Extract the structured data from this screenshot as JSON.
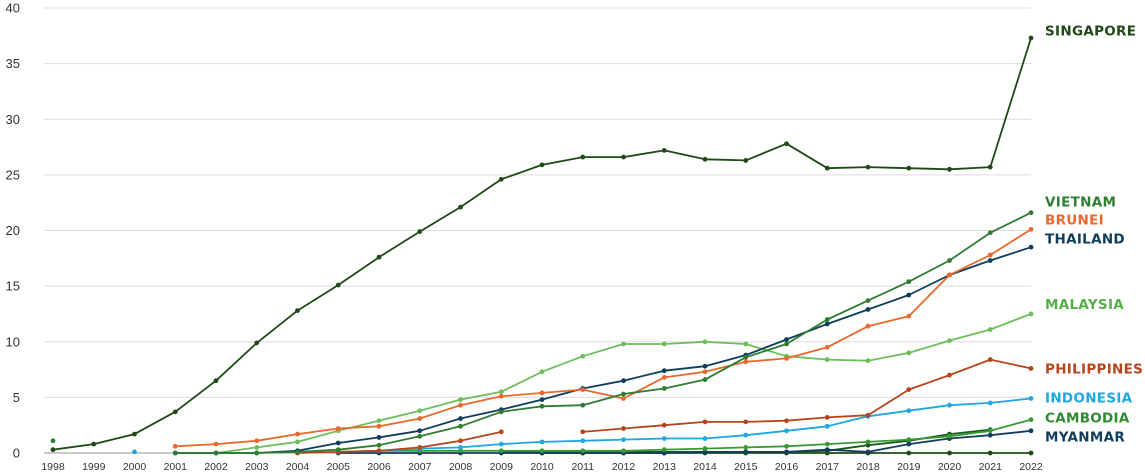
{
  "chart_data": {
    "type": "line",
    "title": "",
    "xlabel": "",
    "ylabel": "",
    "ylim": [
      0,
      40
    ],
    "yticks": [
      0,
      5,
      10,
      15,
      20,
      25,
      30,
      35,
      40
    ],
    "x": [
      1998,
      1999,
      2000,
      2001,
      2002,
      2003,
      2004,
      2005,
      2006,
      2007,
      2008,
      2009,
      2010,
      2011,
      2012,
      2013,
      2014,
      2015,
      2016,
      2017,
      2018,
      2019,
      2020,
      2021,
      2022
    ],
    "grid": "horizontal",
    "legend": "series labels at right end of lines",
    "series": [
      {
        "name": "SINGAPORE",
        "color": "#1f4a17",
        "values": [
          0.3,
          0.8,
          1.7,
          3.7,
          6.5,
          9.9,
          12.8,
          15.1,
          17.6,
          19.9,
          22.1,
          24.6,
          25.9,
          26.6,
          26.6,
          27.2,
          26.4,
          26.3,
          27.8,
          25.6,
          25.7,
          25.6,
          25.5,
          25.7,
          37.3
        ]
      },
      {
        "name": "VIETNAM",
        "color": "#2e7d32",
        "values": [
          1.1,
          null,
          null,
          0.0,
          0.0,
          0.0,
          0.1,
          0.3,
          0.7,
          1.5,
          2.4,
          3.7,
          4.2,
          4.3,
          5.3,
          5.8,
          6.6,
          8.6,
          9.8,
          12.0,
          13.7,
          15.4,
          17.3,
          19.8,
          21.6
        ]
      },
      {
        "name": "BRUNEI",
        "color": "#e8692e",
        "values": [
          null,
          null,
          null,
          0.6,
          0.8,
          1.1,
          1.7,
          2.2,
          2.4,
          3.1,
          4.3,
          5.1,
          5.4,
          5.7,
          4.9,
          6.8,
          7.3,
          8.2,
          8.5,
          9.5,
          11.4,
          12.3,
          16.0,
          17.8,
          20.1
        ]
      },
      {
        "name": "THAILAND",
        "color": "#0f3d5c",
        "values": [
          null,
          null,
          null,
          0.0,
          0.0,
          0.0,
          0.2,
          0.9,
          1.4,
          2.0,
          3.1,
          3.9,
          4.8,
          5.8,
          6.5,
          7.4,
          7.8,
          8.8,
          10.2,
          11.6,
          12.9,
          14.2,
          16.0,
          17.3,
          18.5
        ]
      },
      {
        "name": "MALAYSIA",
        "color": "#6cbf5a",
        "values": [
          null,
          null,
          null,
          null,
          0.0,
          0.5,
          1.0,
          2.0,
          2.9,
          3.8,
          4.8,
          5.5,
          7.3,
          8.7,
          9.8,
          9.8,
          10.0,
          9.8,
          8.7,
          8.4,
          8.3,
          9.0,
          10.1,
          11.1,
          12.5
        ]
      },
      {
        "name": "PHILIPPINES",
        "color": "#b5451b",
        "values": [
          null,
          null,
          null,
          null,
          null,
          null,
          0.0,
          0.1,
          0.2,
          0.5,
          1.1,
          1.9,
          null,
          1.9,
          2.2,
          2.5,
          2.8,
          2.8,
          2.9,
          3.2,
          3.4,
          5.7,
          7.0,
          8.4,
          7.6
        ]
      },
      {
        "name": "INDONESIA",
        "color": "#1ea7e0",
        "values": [
          null,
          null,
          0.1,
          null,
          null,
          null,
          null,
          0.1,
          0.2,
          0.4,
          0.5,
          0.8,
          1.0,
          1.1,
          1.2,
          1.3,
          1.3,
          1.6,
          2.0,
          2.4,
          3.3,
          3.8,
          4.3,
          4.5,
          4.9
        ]
      },
      {
        "name": "CAMBODIA",
        "color": "#3a9a36",
        "values": [
          null,
          null,
          null,
          null,
          null,
          null,
          null,
          0.1,
          0.2,
          0.2,
          0.2,
          0.2,
          0.2,
          0.2,
          0.2,
          0.3,
          0.4,
          0.5,
          0.6,
          0.8,
          1.0,
          1.2,
          1.5,
          2.0,
          3.0
        ]
      },
      {
        "name": "MYANMAR",
        "color": "#123d5e",
        "values": [
          null,
          null,
          null,
          null,
          null,
          null,
          null,
          0.0,
          0.0,
          0.0,
          0.0,
          0.0,
          0.0,
          0.0,
          0.0,
          0.0,
          0.1,
          0.1,
          0.1,
          0.3,
          0.1,
          0.8,
          1.3,
          1.6,
          2.0
        ]
      },
      {
        "name": "",
        "color": "#1b5e20",
        "values": [
          null,
          null,
          null,
          null,
          null,
          null,
          null,
          null,
          null,
          null,
          null,
          0.1,
          0.1,
          0.1,
          0.1,
          0.1,
          0.1,
          0.1,
          0.1,
          0.2,
          0.7,
          1.1,
          1.7,
          2.1,
          null
        ]
      },
      {
        "name": "",
        "color": "#1f4a17",
        "values": [
          null,
          null,
          null,
          null,
          null,
          null,
          null,
          null,
          null,
          null,
          null,
          null,
          0.0,
          0.0,
          0.0,
          0.0,
          0.0,
          0.0,
          0.0,
          0.0,
          0.0,
          0.0,
          0.0,
          0.0,
          0.0
        ]
      }
    ],
    "labels": [
      {
        "text": "SINGAPORE",
        "color": "#1f4a17",
        "y": 38.0
      },
      {
        "text": "VIETNAM",
        "color": "#2e7d32",
        "y": 22.6
      },
      {
        "text": "BRUNEI",
        "color": "#e8692e",
        "y": 21.0
      },
      {
        "text": "THAILAND",
        "color": "#0f3d5c",
        "y": 19.3
      },
      {
        "text": "MALAYSIA",
        "color": "#55b047",
        "y": 13.4
      },
      {
        "text": "PHILIPPINES",
        "color": "#b5451b",
        "y": 7.6
      },
      {
        "text": "INDONESIA",
        "color": "#1ea7e0",
        "y": 5.0
      },
      {
        "text": "CAMBODIA",
        "color": "#2e8b2e",
        "y": 3.2
      },
      {
        "text": "MYANMAR",
        "color": "#0f3d5c",
        "y": 1.5
      }
    ]
  }
}
